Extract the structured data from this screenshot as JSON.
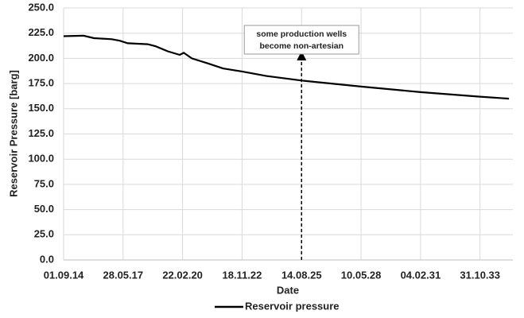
{
  "chart_data": {
    "type": "line",
    "x_label": "Date",
    "y_label": "Reservoir Pressure [barg]",
    "x": [
      "01.09.14",
      "02.08.15",
      "25.01.16",
      "17.11.16",
      "31.03.17",
      "13.08.17",
      "15.07.18",
      "27.11.18",
      "17.06.19",
      "05.01.20",
      "12.03.20",
      "25.07.20",
      "20.04.21",
      "01.01.22",
      "18.11.22",
      "01.01.24",
      "14.08.25",
      "10.05.28",
      "04.02.31",
      "31.10.33",
      "01.03.35"
    ],
    "series": [
      {
        "name": "Reservoir pressure",
        "color": "#000000",
        "values": [
          222,
          222.5,
          220,
          219,
          217.5,
          215,
          214,
          212,
          207,
          203.5,
          205.5,
          200,
          195,
          190,
          187,
          182.5,
          178,
          172,
          166.5,
          162,
          160
        ]
      }
    ],
    "xlim": [
      "01.09.14",
      "06.05.35"
    ],
    "xticks": [
      "01.09.14",
      "28.05.17",
      "22.02.20",
      "18.11.22",
      "14.08.25",
      "10.05.28",
      "04.02.31",
      "31.10.33"
    ],
    "ylim": [
      0,
      250
    ],
    "yticks": [
      {
        "value": 0,
        "label": "0.0"
      },
      {
        "value": 25,
        "label": "25.0"
      },
      {
        "value": 50,
        "label": "50.0"
      },
      {
        "value": 75,
        "label": "75.0"
      },
      {
        "value": 100,
        "label": "100.0"
      },
      {
        "value": 125,
        "label": "125.0"
      },
      {
        "value": 150,
        "label": "150.0"
      },
      {
        "value": 175,
        "label": "175.0"
      },
      {
        "value": 200,
        "label": "200.0"
      },
      {
        "value": 225,
        "label": "225.0"
      },
      {
        "value": 250,
        "label": "250.0"
      }
    ],
    "grid": true,
    "legend": "bottom",
    "annotation": {
      "x": "14.08.25",
      "lines": [
        "some production wells",
        "become non-artesian"
      ]
    }
  }
}
